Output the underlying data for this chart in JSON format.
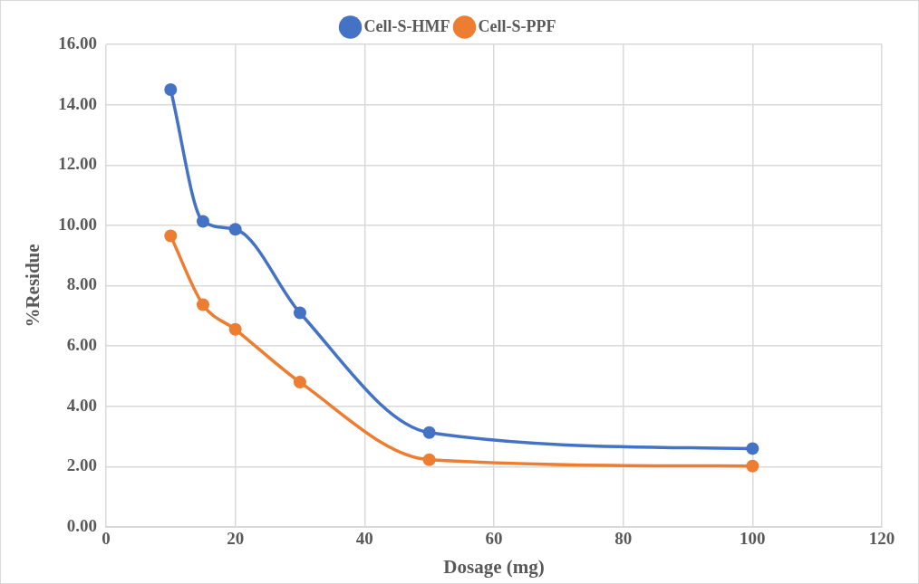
{
  "chart_data": {
    "type": "line",
    "xlabel": "Dosage (mg)",
    "ylabel": "%Residue",
    "x": [
      10,
      15,
      20,
      30,
      50,
      100
    ],
    "series": [
      {
        "name": "Cell-S-HMF",
        "color": "#4472c4",
        "values": [
          14.5,
          10.13,
          9.87,
          7.1,
          3.13,
          2.6
        ]
      },
      {
        "name": "Cell-S-PPF",
        "color": "#ed7d31",
        "values": [
          9.65,
          7.37,
          6.55,
          4.8,
          2.23,
          2.02
        ]
      }
    ],
    "xlim": [
      0,
      120
    ],
    "xticks": [
      0,
      20,
      40,
      60,
      80,
      100,
      120
    ],
    "ylim": [
      0,
      16
    ],
    "yticks": [
      {
        "value": 0,
        "label": "0.00"
      },
      {
        "value": 2,
        "label": "2.00"
      },
      {
        "value": 4,
        "label": "4.00"
      },
      {
        "value": 6,
        "label": "6.00"
      },
      {
        "value": 8,
        "label": "8.00"
      },
      {
        "value": 10,
        "label": "10.00"
      },
      {
        "value": 12,
        "label": "12.00"
      },
      {
        "value": 14,
        "label": "14.00"
      },
      {
        "value": 16,
        "label": "16.00"
      }
    ],
    "grid": true,
    "legend": "top",
    "marker": "circle",
    "line_style": "solid"
  }
}
